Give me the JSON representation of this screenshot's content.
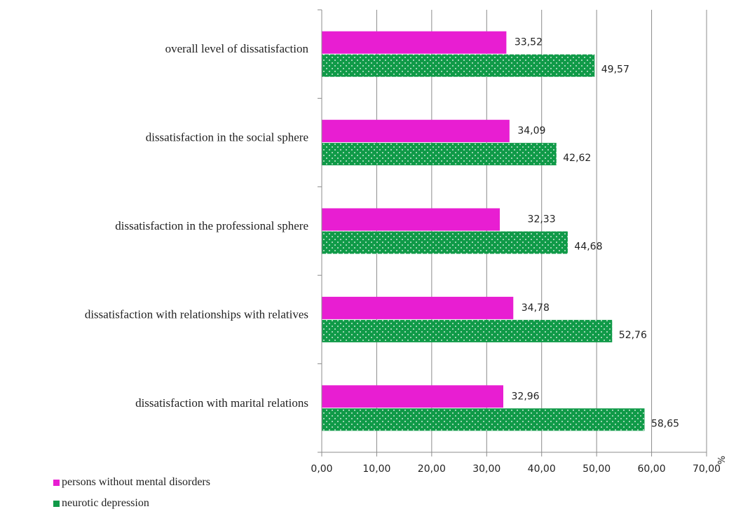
{
  "chart_data": {
    "type": "bar",
    "orientation": "horizontal",
    "categories": [
      "overall level of dissatisfaction",
      "dissatisfaction in the social sphere",
      "dissatisfaction in the professional sphere",
      "dissatisfaction with relationships with relatives",
      "dissatisfaction with marital relations"
    ],
    "series": [
      {
        "name": "persons without mental disorders",
        "color": "#e81ed2",
        "values": [
          33.52,
          34.09,
          32.33,
          34.78,
          32.96
        ],
        "labels": [
          "33,52",
          "34,09",
          "32,33",
          "34,78",
          "32,96"
        ]
      },
      {
        "name": "neurotic depression",
        "color": "#109a48",
        "pattern": "dotted",
        "values": [
          49.57,
          42.62,
          44.68,
          52.76,
          58.65
        ],
        "labels": [
          "49,57",
          "42,62",
          "44,68",
          "52,76",
          "58,65"
        ]
      }
    ],
    "xlim": [
      0,
      70
    ],
    "ticks": [
      0,
      10,
      20,
      30,
      40,
      50,
      60,
      70
    ],
    "tick_labels": [
      "0,00",
      "10,00",
      "20,00",
      "30,00",
      "40,00",
      "50,00",
      "60,00",
      "70,00"
    ],
    "unit_label": "%",
    "grid": true,
    "legend": "bottom-left"
  }
}
